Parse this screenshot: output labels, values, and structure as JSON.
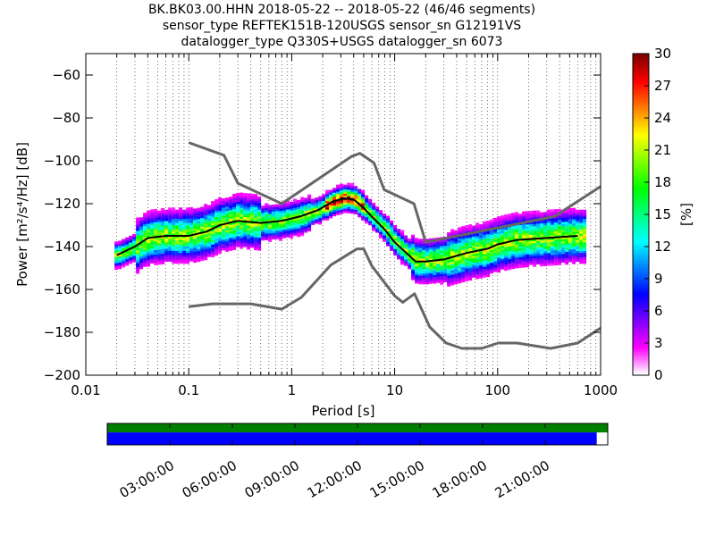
{
  "title": {
    "line1": "BK.BK03.00.HHN   2018-05-22 -- 2018-05-22  (46/46 segments)",
    "line2": "sensor_type REFTEK151B-120USGS sensor_sn G12191VS",
    "line3": "datalogger_type Q330S+USGS datalogger_sn 6073"
  },
  "chart_data": {
    "type": "heatmap",
    "xlabel": "Period [s]",
    "ylabel": "Power [m²/s⁴/Hz] [dB]",
    "xscale": "log",
    "xlim": [
      0.01,
      1000
    ],
    "ylim": [
      -200,
      -50
    ],
    "x_ticks": [
      0.01,
      0.1,
      1,
      10,
      100,
      1000
    ],
    "x_tick_labels": [
      "0.01",
      "0.1",
      "1",
      "10",
      "100",
      "1000"
    ],
    "y_ticks": [
      -200,
      -180,
      -160,
      -140,
      -120,
      -100,
      -80,
      -60
    ],
    "y_tick_labels": [
      "−200",
      "−180",
      "−160",
      "−140",
      "−120",
      "−100",
      "−80",
      "−60"
    ],
    "colorbar": {
      "label": "[%]",
      "range": [
        0,
        30
      ],
      "ticks": [
        "0",
        "3",
        "6",
        "9",
        "12",
        "15",
        "18",
        "21",
        "24",
        "27",
        "30"
      ],
      "colors": [
        "#ffffff",
        "#ff00ff",
        "#8000ff",
        "#0000ff",
        "#0080ff",
        "#00ffff",
        "#00ff80",
        "#00ff00",
        "#80ff00",
        "#ffff00",
        "#ff8000",
        "#ff0000",
        "#800000"
      ]
    },
    "series": [
      {
        "kind": "noise-model-high",
        "x": [
          0.1,
          0.22,
          0.3,
          0.8,
          3.8,
          4.6,
          6.3,
          7.9,
          15.4,
          20,
          354.8,
          1000
        ],
        "y": [
          -91.5,
          -97.4,
          -110.5,
          -120,
          -98,
          -96.5,
          -101,
          -113.5,
          -120,
          -138,
          -126,
          -112
        ]
      },
      {
        "kind": "noise-model-low",
        "x": [
          0.1,
          0.17,
          0.4,
          0.8,
          1.24,
          2.4,
          4.3,
          5,
          6,
          10,
          12,
          15.6,
          21.9,
          31.6,
          45,
          70,
          101,
          154,
          328,
          600,
          1000
        ],
        "y": [
          -168,
          -166.7,
          -166.7,
          -169.2,
          -163.7,
          -148.6,
          -141.1,
          -141.1,
          -149,
          -163,
          -166,
          -162,
          -177.5,
          -185,
          -187.5,
          -187.5,
          -185,
          -185,
          -187.5,
          -185,
          -178
        ]
      },
      {
        "kind": "median",
        "x": [
          0.02,
          0.03,
          0.04,
          0.06,
          0.1,
          0.15,
          0.2,
          0.3,
          0.5,
          0.8,
          1.2,
          1.8,
          2.5,
          3.2,
          4,
          5,
          6,
          8,
          10,
          13,
          16,
          20,
          30,
          50,
          80,
          100,
          150,
          300,
          600
        ],
        "y": [
          -144,
          -140,
          -136,
          -135,
          -135,
          -133,
          -130,
          -128,
          -129,
          -128,
          -126,
          -123,
          -119,
          -117.5,
          -118,
          -122,
          -126,
          -132,
          -138,
          -143,
          -147,
          -147,
          -146,
          -143,
          -141,
          -139,
          -137,
          -136,
          -135
        ]
      }
    ],
    "timeline": {
      "tick_labels": [
        "03:00:00",
        "06:00:00",
        "09:00:00",
        "12:00:00",
        "15:00:00",
        "18:00:00",
        "21:00:00"
      ],
      "ticks_hours": [
        3,
        6,
        9,
        12,
        15,
        18,
        21
      ],
      "range_hours": [
        0,
        24
      ],
      "top_bar_coverage": 1.0,
      "bottom_bar_coverage": 0.978,
      "top_bar_color": "#008000",
      "bottom_bar_color": "#0000ff"
    }
  }
}
